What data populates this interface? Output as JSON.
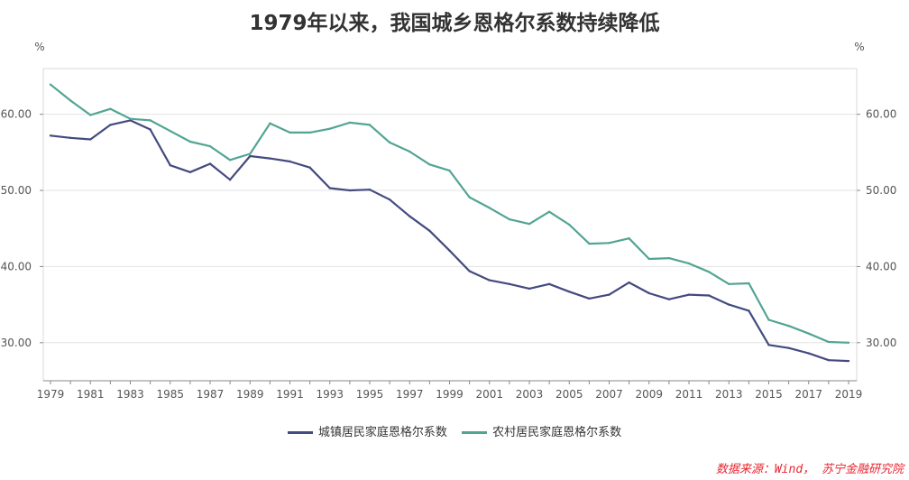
{
  "chart_data": {
    "type": "line",
    "title": "1979年以来，我国城乡恩格尔系数持续降低",
    "ylabel_left": "%",
    "ylabel_right": "%",
    "ylim": [
      25,
      66
    ],
    "yticks": [
      30,
      40,
      50,
      60
    ],
    "ytick_labels": [
      "30.00",
      "40.00",
      "50.00",
      "60.00"
    ],
    "x": [
      1979,
      1980,
      1981,
      1982,
      1983,
      1984,
      1985,
      1986,
      1987,
      1988,
      1989,
      1990,
      1991,
      1992,
      1993,
      1994,
      1995,
      1996,
      1997,
      1998,
      1999,
      2000,
      2001,
      2002,
      2003,
      2004,
      2005,
      2006,
      2007,
      2008,
      2009,
      2010,
      2011,
      2012,
      2013,
      2014,
      2015,
      2016,
      2017,
      2018,
      2019
    ],
    "xtick_labels": [
      "1979",
      "1981",
      "1983",
      "1985",
      "1987",
      "1989",
      "1991",
      "1993",
      "1995",
      "1997",
      "1999",
      "2001",
      "2003",
      "2005",
      "2007",
      "2009",
      "2011",
      "2013",
      "2015",
      "2017",
      "2019"
    ],
    "series": [
      {
        "name": "城镇居民家庭恩格尔系数",
        "color": "#434a7f",
        "values": [
          57.2,
          56.9,
          56.7,
          58.6,
          59.2,
          58.0,
          53.3,
          52.4,
          53.5,
          51.4,
          54.5,
          54.2,
          53.8,
          53.0,
          50.3,
          50.0,
          50.1,
          48.8,
          46.6,
          44.7,
          42.1,
          39.4,
          38.2,
          37.7,
          37.1,
          37.7,
          36.7,
          35.8,
          36.3,
          37.9,
          36.5,
          35.7,
          36.3,
          36.2,
          35.0,
          34.2,
          29.7,
          29.3,
          28.6,
          27.7,
          27.6
        ]
      },
      {
        "name": "农村居民家庭恩格尔系数",
        "color": "#52a493",
        "values": [
          63.9,
          61.8,
          59.9,
          60.7,
          59.4,
          59.2,
          57.8,
          56.4,
          55.8,
          54.0,
          54.8,
          58.8,
          57.6,
          57.6,
          58.1,
          58.9,
          58.6,
          56.3,
          55.1,
          53.4,
          52.6,
          49.1,
          47.7,
          46.2,
          45.6,
          47.2,
          45.5,
          43.0,
          43.1,
          43.7,
          41.0,
          41.1,
          40.4,
          39.3,
          37.7,
          37.8,
          33.0,
          32.2,
          31.2,
          30.1,
          30.0
        ]
      }
    ],
    "legend": "bottom-center",
    "grid": true
  },
  "source_note": "数据来源：Wind， 苏宁金融研究院"
}
